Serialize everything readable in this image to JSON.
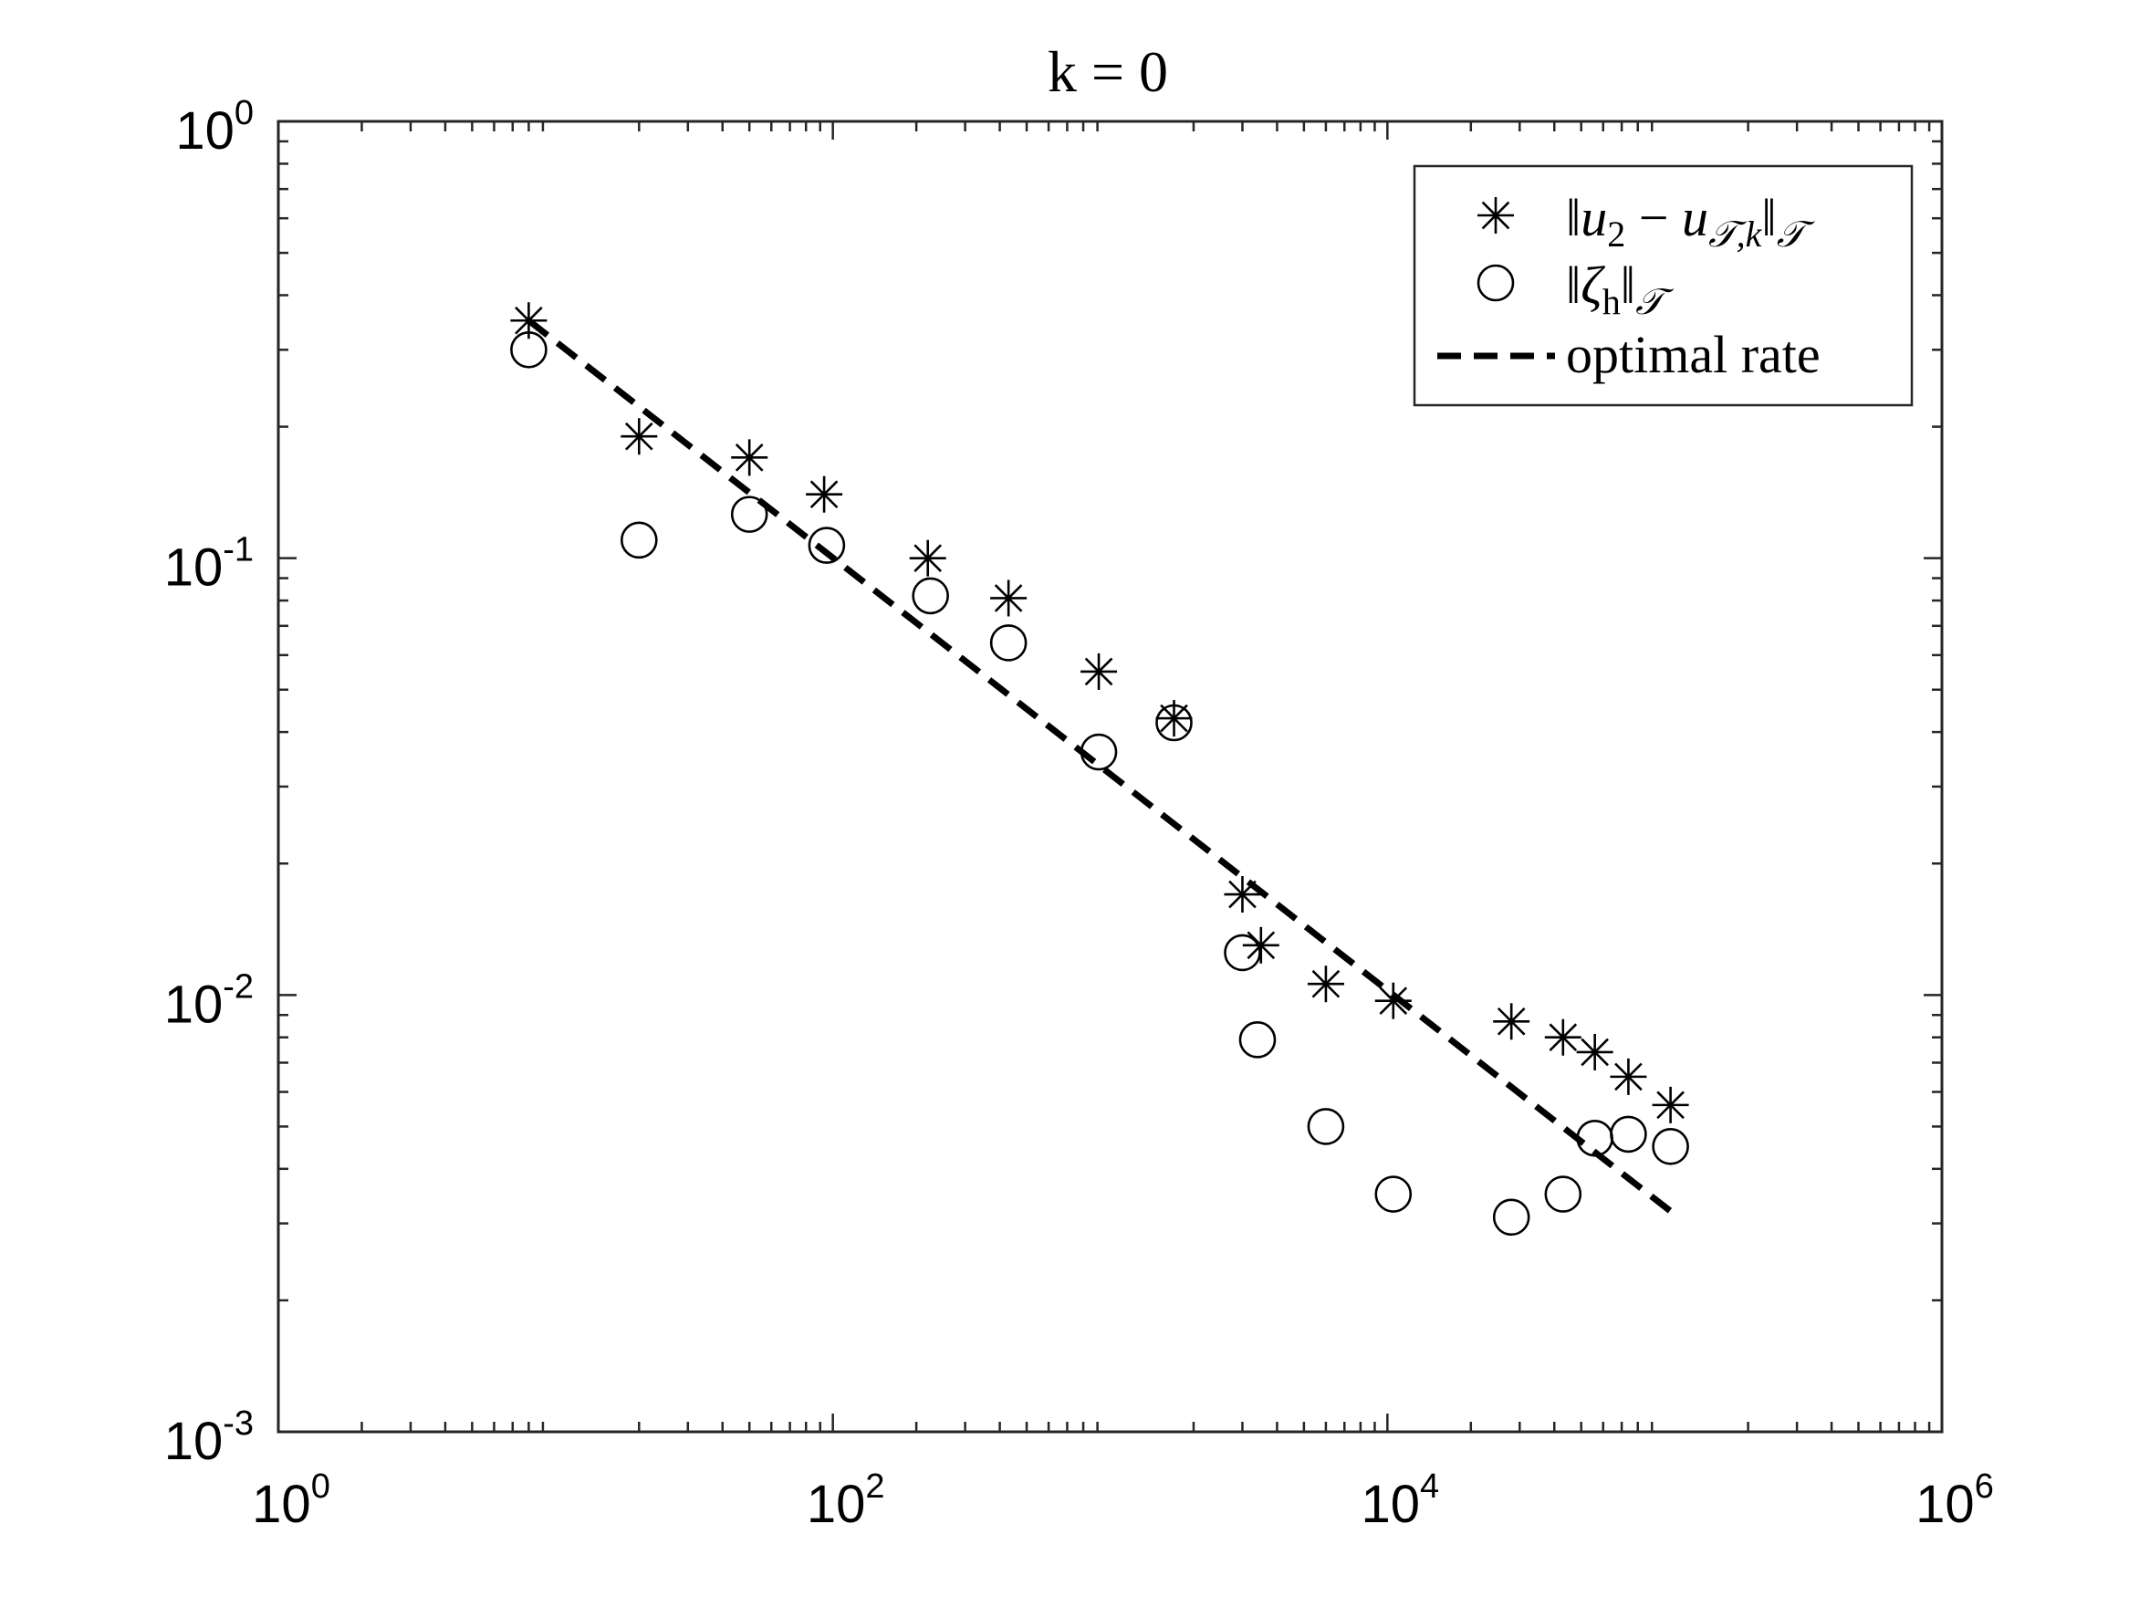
{
  "chart_data": {
    "type": "scatter",
    "title": "k = 0",
    "xlabel": "",
    "ylabel": "",
    "xscale": "log",
    "yscale": "log",
    "xlim": [
      1,
      1000000
    ],
    "ylim": [
      0.001,
      1
    ],
    "grid": false,
    "box": true,
    "legend_position": "top-right",
    "x_ticks": [
      {
        "base": "10",
        "exp": "0",
        "value": 1
      },
      {
        "base": "10",
        "exp": "2",
        "value": 100
      },
      {
        "base": "10",
        "exp": "4",
        "value": 10000
      },
      {
        "base": "10",
        "exp": "6",
        "value": 1000000
      }
    ],
    "y_ticks": [
      {
        "base": "10",
        "exp": "0",
        "value": 1
      },
      {
        "base": "10",
        "exp": "-1",
        "value": 0.1
      },
      {
        "base": "10",
        "exp": "-2",
        "value": 0.01
      },
      {
        "base": "10",
        "exp": "-3",
        "value": 0.001
      }
    ],
    "series": [
      {
        "name": "‖u₂ − u_𝒯,k‖_𝒯",
        "legend_label": {
          "pre": "‖",
          "v1": "u",
          "s1": "2",
          "mid": " − ",
          "v2": "u",
          "s2": "𝒯,k",
          "post": "‖",
          "s3": "𝒯"
        },
        "marker": "asterisk",
        "color": "#000000",
        "x": [
          8,
          20,
          50,
          93,
          220,
          430,
          910,
          1700,
          3000,
          3500,
          6000,
          10500,
          28000,
          43000,
          56000,
          74000,
          105000
        ],
        "y": [
          0.35,
          0.19,
          0.17,
          0.14,
          0.1,
          0.081,
          0.055,
          0.043,
          0.017,
          0.013,
          0.0106,
          0.0097,
          0.0087,
          0.008,
          0.0074,
          0.0065,
          0.0056
        ]
      },
      {
        "name": "‖ζ_h‖_𝒯",
        "legend_label": {
          "pre": "‖",
          "v1": "ζ",
          "s1": "h",
          "post": "‖",
          "s3": "𝒯"
        },
        "marker": "circle",
        "color": "#000000",
        "x": [
          8,
          20,
          50,
          95,
          225,
          430,
          910,
          1700,
          3000,
          3400,
          6000,
          10500,
          28000,
          43000,
          56000,
          74000,
          105000
        ],
        "y": [
          0.3,
          0.11,
          0.126,
          0.107,
          0.082,
          0.064,
          0.036,
          0.042,
          0.0125,
          0.0079,
          0.005,
          0.0035,
          0.0031,
          0.0035,
          0.0047,
          0.0048,
          0.0045
        ]
      },
      {
        "name": "optimal rate",
        "marker": "none",
        "line": "dashed",
        "color": "#000000",
        "x": [
          8,
          105000
        ],
        "y": [
          0.35,
          0.0032
        ]
      }
    ]
  }
}
